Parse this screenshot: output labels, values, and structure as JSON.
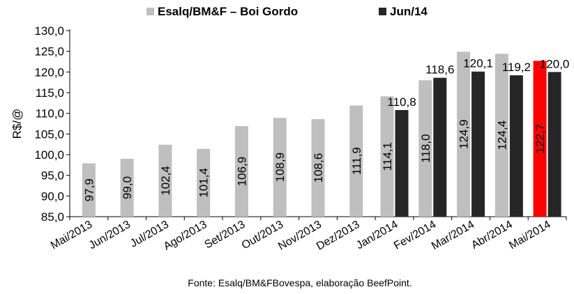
{
  "chart_data": {
    "type": "bar",
    "ylabel": "R$/@",
    "ylim": [
      85,
      130
    ],
    "yticks": [
      "85,0",
      "90,0",
      "95,0",
      "100,0",
      "105,0",
      "110,0",
      "115,0",
      "120,0",
      "125,0",
      "130,0"
    ],
    "categories": [
      "Mai/2013",
      "Jun/2013",
      "Jul/2013",
      "Ago/2013",
      "Set/2013",
      "Out/2013",
      "Nov/2013",
      "Dez/2013",
      "Jan/2014",
      "Fev/2014",
      "Mar/2014",
      "Abr/2014",
      "Mai/2014"
    ],
    "series": [
      {
        "name": "Esalq/BM&F – Boi Gordo",
        "color": "#bfbfbf",
        "highlight": {
          "index": 12,
          "color": "#ff0000"
        },
        "values": [
          97.9,
          99.0,
          102.4,
          101.4,
          106.9,
          108.9,
          108.6,
          111.9,
          114.1,
          118.0,
          124.9,
          124.4,
          122.7
        ],
        "labels": [
          "97,9",
          "99,0",
          "102,4",
          "101,4",
          "106,9",
          "108,9",
          "108,6",
          "111,9",
          "114,1",
          "118,0",
          "124,9",
          "124,4",
          "122,7"
        ]
      },
      {
        "name": "Jun/14",
        "color": "#262626",
        "values": [
          null,
          null,
          null,
          null,
          null,
          null,
          null,
          null,
          110.8,
          118.6,
          120.1,
          119.2,
          120.0
        ],
        "labels": [
          null,
          null,
          null,
          null,
          null,
          null,
          null,
          null,
          "110,8",
          "118,6",
          "120,1",
          "119,2",
          "120,0"
        ]
      }
    ],
    "legend_position": "top",
    "grid": false
  },
  "source_note": "Fonte: Esalq/BM&FBovespa, elaboração BeefPoint."
}
